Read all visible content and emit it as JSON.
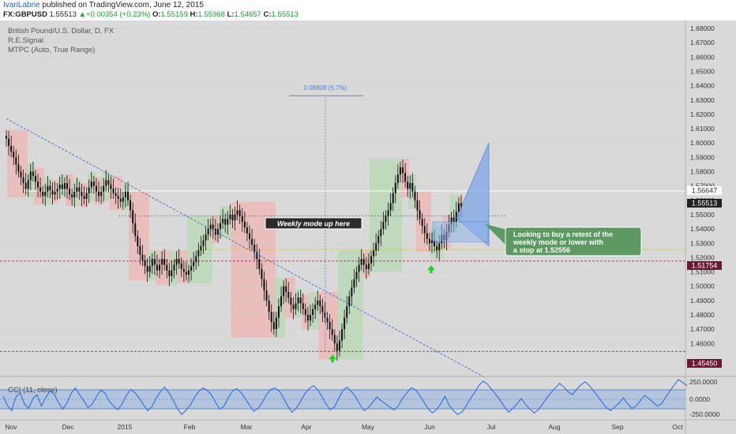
{
  "header": {
    "author": "IvanLabrie",
    "published": "published on TradingView.com, June 12, 2015",
    "symbol": "FX:GBPUSD",
    "last": "1.55513",
    "change_arrow": "▲",
    "change": "+0.00354 (+0.23%)",
    "o_label": "O:",
    "o_value": "1.55159",
    "h_label": "H:",
    "h_value": "1.55968",
    "l_label": "L:",
    "l_value": "1.54657",
    "c_label": "C:",
    "c_value": "1.55513"
  },
  "legend": {
    "title": "British Pound/U.S. Dollar, D, FX",
    "line2": "R.E.Signal",
    "line3": "MTPC (Auto, True Range)"
  },
  "annotations": {
    "measure": "0.08808 (5.7%)",
    "weekly_mode": "Weekly mode up here",
    "callout": [
      "Looking to buy a retest of the",
      "weekly mode or lower with",
      "a stop at 1.52556"
    ]
  },
  "price_labels": {
    "current": "1.55513",
    "upper": "1.56647",
    "mode": "1.51754",
    "low": "1.45450"
  },
  "cci": {
    "title": "CCI (11, close)",
    "ticks": [
      "250.0000",
      "0.0000",
      "-250.0000"
    ]
  },
  "colors": {
    "background": "#d9d9d9",
    "candle": "#111111",
    "bull_zone": "#b6d8b2",
    "bear_zone": "#f0b4b4",
    "trendline": "#3a6fd0",
    "callout": "#5e9862",
    "mode_label": "#6b1834",
    "cci_line": "#2f6fe0"
  },
  "chart_data": {
    "type": "candlestick",
    "symbol": "GBPUSD",
    "timeframe": "D",
    "x_ticks": [
      "Nov",
      "Dec",
      "2015",
      "Feb",
      "Mar",
      "Apr",
      "May",
      "Jun",
      "Jul",
      "Aug",
      "Sep",
      "Oct"
    ],
    "y_ticks": [
      "1.68000",
      "1.67000",
      "1.66000",
      "1.65000",
      "1.64000",
      "1.63000",
      "1.62000",
      "1.61000",
      "1.60000",
      "1.59000",
      "1.58000",
      "1.57000",
      "1.56000",
      "1.55000",
      "1.54000",
      "1.53000",
      "1.52000",
      "1.51000",
      "1.50000",
      "1.49000",
      "1.48000",
      "1.47000",
      "1.46000"
    ],
    "ylim": [
      1.44,
      1.69
    ],
    "closes": [
      1.603,
      1.598,
      1.594,
      1.59,
      1.585,
      1.58,
      1.576,
      1.572,
      1.568,
      1.574,
      1.58,
      1.577,
      1.573,
      1.569,
      1.566,
      1.563,
      1.566,
      1.57,
      1.567,
      1.564,
      1.566,
      1.568,
      1.571,
      1.568,
      1.572,
      1.568,
      1.564,
      1.562,
      1.566,
      1.569,
      1.566,
      1.563,
      1.561,
      1.565,
      1.569,
      1.573,
      1.57,
      1.566,
      1.563,
      1.566,
      1.57,
      1.574,
      1.571,
      1.568,
      1.565,
      1.563,
      1.561,
      1.559,
      1.562,
      1.566,
      1.56,
      1.553,
      1.544,
      1.535,
      1.528,
      1.522,
      1.518,
      1.514,
      1.51,
      1.514,
      1.519,
      1.515,
      1.511,
      1.515,
      1.519,
      1.515,
      1.511,
      1.507,
      1.511,
      1.515,
      1.519,
      1.516,
      1.512,
      1.51,
      1.508,
      1.511,
      1.514,
      1.517,
      1.521,
      1.525,
      1.528,
      1.532,
      1.536,
      1.54,
      1.543,
      1.54,
      1.536,
      1.54,
      1.544,
      1.547,
      1.543,
      1.547,
      1.55,
      1.546,
      1.55,
      1.553,
      1.549,
      1.545,
      1.541,
      1.537,
      1.533,
      1.529,
      1.524,
      1.519,
      1.512,
      1.505,
      1.497,
      1.49,
      1.482,
      1.475,
      1.47,
      1.478,
      1.486,
      1.493,
      1.5,
      1.496,
      1.492,
      1.487,
      1.484,
      1.488,
      1.492,
      1.488,
      1.484,
      1.48,
      1.476,
      1.48,
      1.484,
      1.487,
      1.49,
      1.486,
      1.482,
      1.478,
      1.475,
      1.47,
      1.466,
      1.46,
      1.455,
      1.462,
      1.47,
      1.478,
      1.486,
      1.493,
      1.499,
      1.505,
      1.51,
      1.515,
      1.519,
      1.515,
      1.512,
      1.516,
      1.521,
      1.525,
      1.53,
      1.535,
      1.54,
      1.545,
      1.549,
      1.553,
      1.558,
      1.565,
      1.572,
      1.578,
      1.583,
      1.579,
      1.573,
      1.568,
      1.572,
      1.566,
      1.56,
      1.553,
      1.547,
      1.542,
      1.537,
      1.533,
      1.53,
      1.532,
      1.528,
      1.525,
      1.53,
      1.536,
      1.532,
      1.538,
      1.543,
      1.548,
      1.545,
      1.552,
      1.558,
      1.555
    ],
    "key_levels": {
      "upper": 1.56647,
      "mode": 1.51754,
      "low": 1.4545,
      "stop": 1.52556
    },
    "projection": {
      "distance": 0.08808,
      "percent": "5.7%"
    },
    "cci_values": [
      40,
      -80,
      -150,
      30,
      90,
      -60,
      -120,
      10,
      60,
      -90,
      20,
      110,
      70,
      -40,
      -130,
      -50,
      80,
      150,
      60,
      -20,
      -110,
      -60,
      40,
      120,
      80,
      -30,
      -90,
      -140,
      -60,
      50,
      130,
      90,
      20,
      -70,
      -150,
      -100,
      10,
      100,
      160,
      90,
      -10,
      -120,
      -200,
      -150,
      -80,
      20,
      100,
      150,
      120,
      60,
      -40,
      -130,
      -90,
      20,
      110,
      140,
      90,
      10,
      -80,
      -160,
      -120,
      -40,
      60,
      130,
      150,
      110,
      20,
      -90,
      -170,
      -120,
      -30,
      70,
      140,
      180,
      130,
      40,
      -60,
      -140,
      -100,
      10,
      120,
      160,
      100,
      30,
      -70,
      -150,
      -110,
      -40,
      30,
      -20,
      -60,
      -100,
      -140,
      -90,
      10,
      80,
      150,
      130,
      60,
      -30,
      -120,
      -180,
      -140,
      -60,
      40,
      -80,
      -150,
      -200,
      -170,
      -90,
      10,
      90,
      180,
      240,
      200,
      130,
      60,
      -10,
      -100,
      -170,
      -120,
      -60,
      10,
      -70,
      -130,
      -180,
      -140,
      -60,
      20,
      90,
      150,
      210,
      160,
      100,
      60,
      130,
      190,
      230,
      180,
      110,
      40,
      -40,
      -110,
      -150,
      -100,
      -50,
      20,
      -60,
      -120,
      -90,
      -20,
      50,
      10,
      -40,
      -90,
      -60,
      30,
      110,
      190,
      260,
      220,
      180
    ]
  }
}
